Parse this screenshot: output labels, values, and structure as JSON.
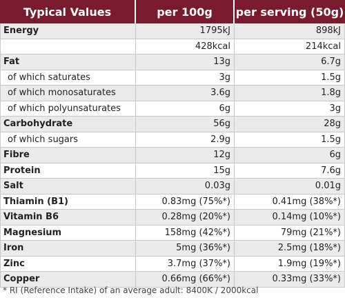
{
  "header": {
    "col1": "Typical Values",
    "col2": "per 100g",
    "col3": "per serving (50g)"
  },
  "rows": [
    {
      "label": "Energy",
      "per100": "1795kJ",
      "serving": "898kJ"
    },
    {
      "label": "",
      "per100": "428kcal",
      "serving": "214kcal"
    },
    {
      "label": "Fat",
      "per100": "13g",
      "serving": "6.7g"
    },
    {
      "label": "of which saturates",
      "per100": "3g",
      "serving": "1.5g"
    },
    {
      "label": "of which monosaturates",
      "per100": "3.6g",
      "serving": "1.8g"
    },
    {
      "label": "of which polyunsaturates",
      "per100": "6g",
      "serving": "3g"
    },
    {
      "label": "Carbohydrate",
      "per100": "56g",
      "serving": "28g"
    },
    {
      "label": "of which sugars",
      "per100": "2.9g",
      "serving": "1.5g"
    },
    {
      "label": "Fibre",
      "per100": "12g",
      "serving": "6g"
    },
    {
      "label": "Protein",
      "per100": "15g",
      "serving": "7.6g"
    },
    {
      "label": "Salt",
      "per100": "0.03g",
      "serving": "0.01g"
    },
    {
      "label": "Thiamin (B1)",
      "per100": "0.83mg (75%*)",
      "serving": "0.41mg (38%*)"
    },
    {
      "label": "Vitamin B6",
      "per100": "0.28mg (20%*)",
      "serving": "0.14mg (10%*)"
    },
    {
      "label": "Magnesium",
      "per100": "158mg (42%*)",
      "serving": "79mg (21%*)"
    },
    {
      "label": "Iron",
      "per100": "5mg (36%*)",
      "serving": "2.5mg (18%*)"
    },
    {
      "label": "Zinc",
      "per100": "3.7mg (37%*)",
      "serving": "1.9mg (19%*)"
    },
    {
      "label": "Copper",
      "per100": "0.66mg (66%*)",
      "serving": "0.33mg (33%*)"
    }
  ],
  "footnote": "* RI (Reference Intake) of an average adult: 8400K / 2000kcal",
  "colors": {
    "header_bg": "#7a1a2e",
    "stripe": "#ebebeb"
  }
}
